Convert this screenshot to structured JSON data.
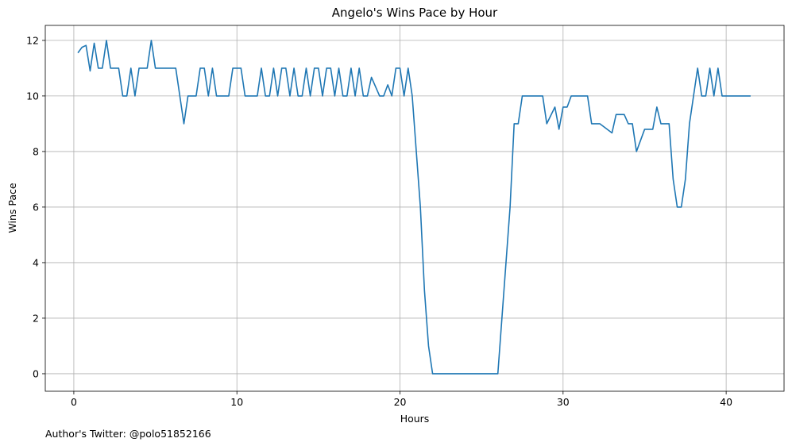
{
  "chart_data": {
    "type": "line",
    "title": "Angelo's Wins Pace by Hour",
    "xlabel": "Hours",
    "ylabel": "Wins Pace",
    "footnote": "Author's Twitter: @polo51852166",
    "x": [
      0.25,
      0.5,
      0.75,
      1,
      1.25,
      1.5,
      1.75,
      2,
      2.25,
      2.5,
      2.75,
      3,
      3.25,
      3.5,
      3.75,
      4,
      4.25,
      4.5,
      4.75,
      5,
      6.25,
      6.5,
      6.75,
      7,
      7.25,
      7.5,
      7.75,
      8,
      8.25,
      8.5,
      8.75,
      9.5,
      9.75,
      10,
      10.25,
      10.5,
      11.25,
      11.5,
      11.75,
      12,
      12.25,
      12.5,
      12.75,
      13,
      13.25,
      13.5,
      13.75,
      14,
      14.25,
      14.5,
      14.75,
      15,
      15.25,
      15.5,
      15.75,
      16,
      16.25,
      16.5,
      16.75,
      17,
      17.25,
      17.5,
      17.75,
      18,
      18.25,
      18.75,
      19,
      19.25,
      19.5,
      19.75,
      20,
      20.25,
      20.5,
      20.75,
      21,
      21.25,
      21.5,
      21.75,
      22,
      26,
      26.25,
      26.5,
      26.75,
      27,
      27.25,
      27.5,
      28.75,
      29,
      29.25,
      29.5,
      29.75,
      30,
      30.25,
      30.5,
      31.5,
      31.75,
      32,
      32.25,
      33,
      33.25,
      33.75,
      34,
      34.25,
      34.5,
      35,
      35.5,
      35.75,
      36,
      36.5,
      36.75,
      37,
      37.25,
      37.5,
      37.75,
      38,
      38.25,
      38.5,
      38.75,
      39,
      39.25,
      39.5,
      39.75,
      41.5
    ],
    "series": [
      {
        "name": "Wins Pace",
        "color": "#1f77b4",
        "values": [
          11.55,
          11.75,
          11.82,
          10.9,
          11.9,
          11,
          11,
          12,
          11,
          11,
          11,
          10,
          10,
          11,
          10,
          11,
          11,
          11,
          12,
          11,
          11,
          10,
          9,
          10,
          10,
          10,
          11,
          11,
          10,
          11,
          10,
          10,
          11,
          11,
          11,
          10,
          10,
          11,
          10,
          10,
          11,
          10,
          11,
          11,
          10,
          11,
          10,
          10,
          11,
          10,
          11,
          11,
          10,
          11,
          11,
          10,
          11,
          10,
          10,
          11,
          10,
          11,
          10,
          10,
          10.67,
          10,
          10,
          10.4,
          10,
          11,
          11,
          10,
          11,
          10,
          8,
          6,
          3,
          1,
          0,
          0,
          2,
          4,
          6,
          9,
          9,
          10,
          10,
          9,
          9.3,
          9.6,
          8.8,
          9.6,
          9.6,
          10,
          10,
          9,
          9,
          9,
          8.67,
          9.33,
          9.33,
          9,
          9,
          8,
          8.8,
          8.8,
          9.6,
          9,
          9,
          7,
          6,
          6,
          7,
          9,
          10,
          11,
          10,
          10,
          11,
          10,
          11,
          10,
          10
        ]
      }
    ],
    "xlim": [
      -1.75,
      43.55
    ],
    "ylim": [
      -0.63,
      12.54
    ],
    "xticks": [
      0,
      10,
      20,
      30,
      40
    ],
    "yticks": [
      0,
      2,
      4,
      6,
      8,
      10,
      12
    ],
    "grid": true
  }
}
